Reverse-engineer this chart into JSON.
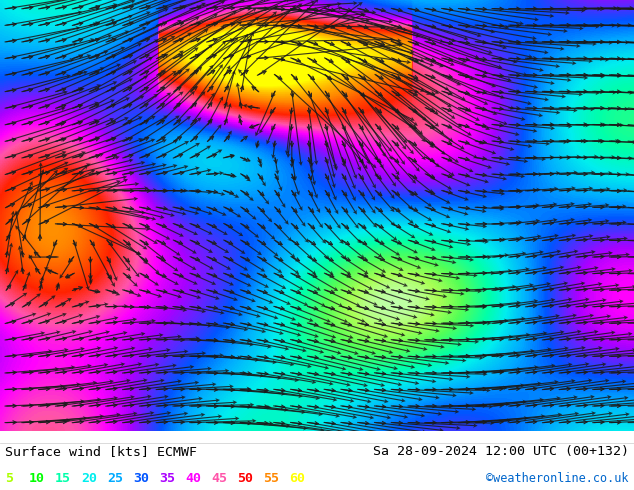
{
  "title_left": "Surface wind [kts] ECMWF",
  "title_right": "Sa 28-09-2024 12:00 UTC (00+132)",
  "credit": "©weatheronline.co.uk",
  "legend_values": [
    5,
    10,
    15,
    20,
    25,
    30,
    35,
    40,
    45,
    50,
    55,
    60
  ],
  "legend_colors": [
    "#aaff00",
    "#00ff00",
    "#00ffaa",
    "#00eeee",
    "#00aaff",
    "#0055ff",
    "#aa00ff",
    "#ff00ff",
    "#ff55aa",
    "#ff0000",
    "#ff8800",
    "#ffff00"
  ],
  "bg_color": "#ffffff",
  "text_color": "#000000",
  "figsize": [
    6.34,
    4.9
  ],
  "dpi": 100,
  "map_colors": {
    "deep_blue": "#0000cc",
    "blue": "#0055ff",
    "cyan_blue": "#00aaff",
    "cyan": "#00ffff",
    "teal": "#00ffaa",
    "green": "#00ff00",
    "yellow_green": "#aaff00",
    "yellow": "#ffff00",
    "orange": "#ffaa00",
    "dark_green": "#007700"
  },
  "wind_barb_color": "#000000",
  "wind_barb_color_light": "#888888"
}
